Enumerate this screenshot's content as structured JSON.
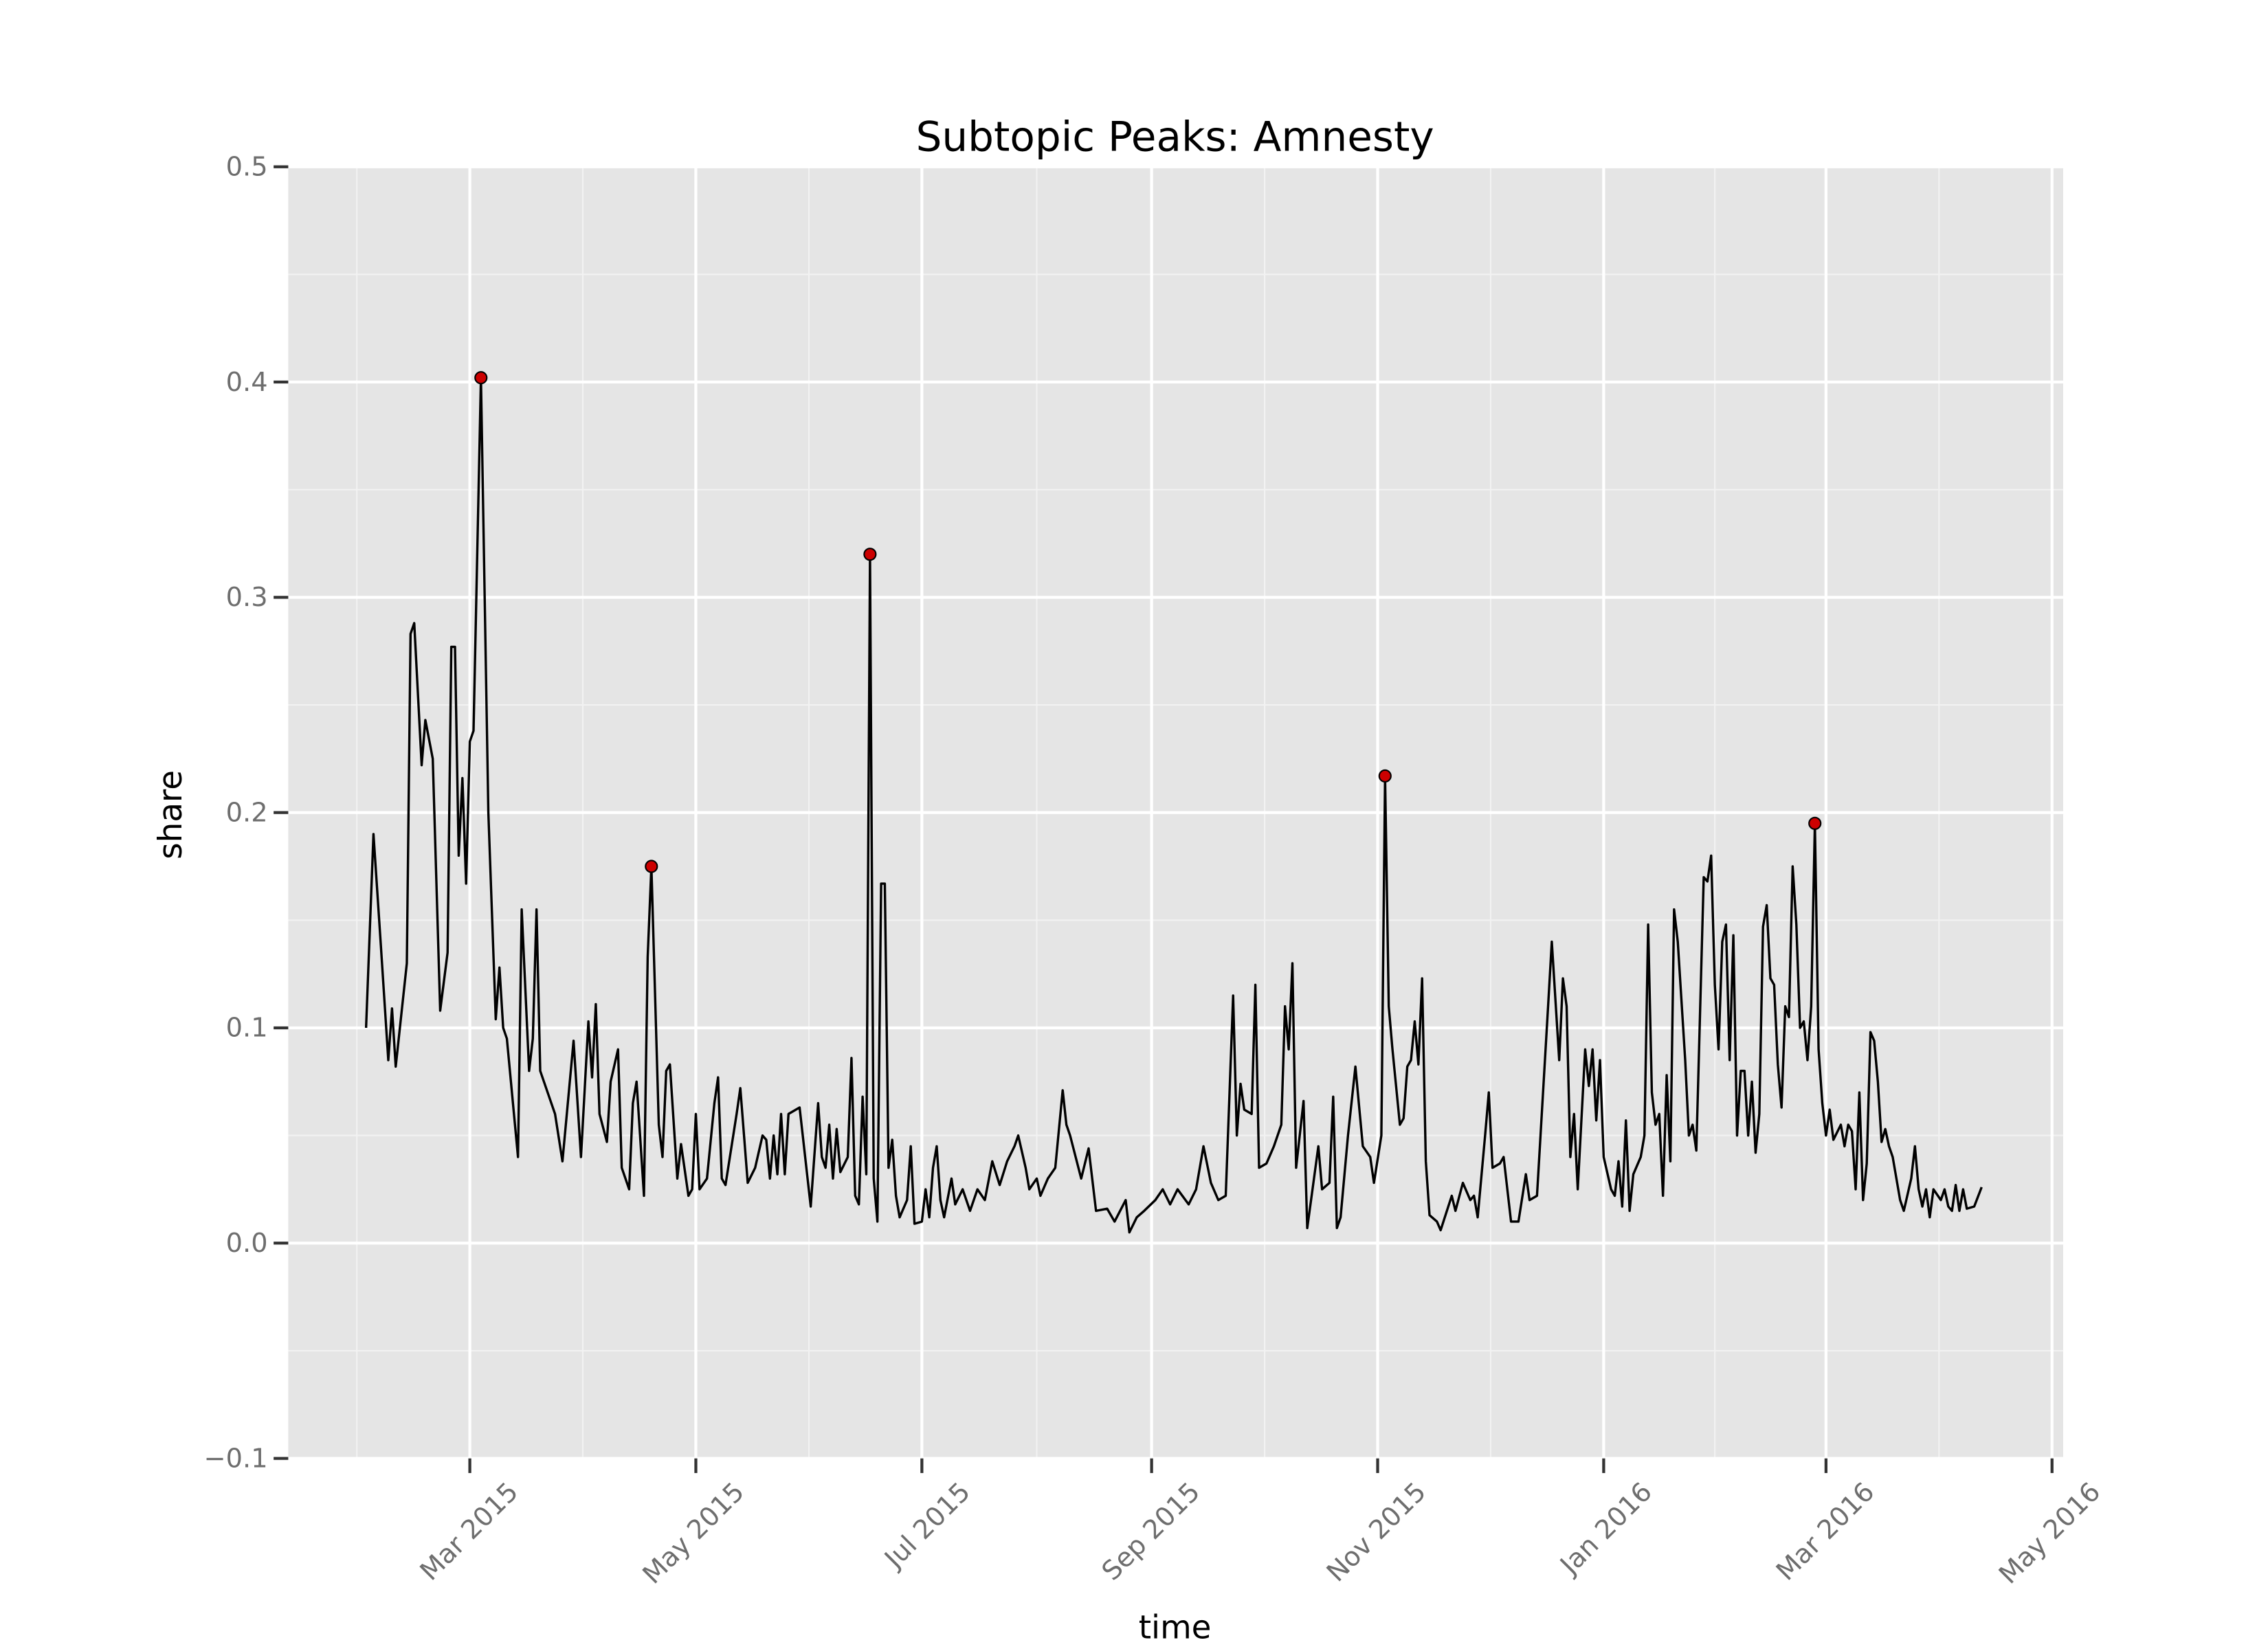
{
  "chart_data": {
    "type": "line",
    "title": "Subtopic Peaks: Amnesty",
    "xlabel": "time",
    "ylabel": "share",
    "xlim": [
      "2015-01-11",
      "2016-05-04"
    ],
    "xticks": [
      {
        "value": "2015-03-01",
        "label": "Mar 2015"
      },
      {
        "value": "2015-05-01",
        "label": "May 2015"
      },
      {
        "value": "2015-07-01",
        "label": "Jul 2015"
      },
      {
        "value": "2015-09-01",
        "label": "Sep 2015"
      },
      {
        "value": "2015-11-01",
        "label": "Nov 2015"
      },
      {
        "value": "2016-01-01",
        "label": "Jan 2016"
      },
      {
        "value": "2016-03-01",
        "label": "Mar 2016"
      },
      {
        "value": "2016-05-01",
        "label": "May 2016"
      }
    ],
    "ylim": [
      -0.1,
      0.5
    ],
    "yticks": [
      {
        "value": -0.1,
        "label": "−0.1"
      },
      {
        "value": 0,
        "label": "0.0"
      },
      0.1,
      0.2,
      0.3,
      0.4,
      0.5
    ],
    "grid": true,
    "series": [
      {
        "color": "#000000",
        "x": [
          "2015-02-01",
          "2015-02-03",
          "2015-02-05",
          "2015-02-07",
          "2015-02-08",
          "2015-02-09",
          "2015-02-12",
          "2015-02-13",
          "2015-02-14",
          "2015-02-16",
          "2015-02-17",
          "2015-02-19",
          "2015-02-21",
          "2015-02-23",
          "2015-02-24",
          "2015-02-25",
          "2015-02-26",
          "2015-02-27",
          "2015-02-28",
          "2015-03-01",
          "2015-03-02",
          "2015-03-04",
          "2015-03-06",
          "2015-03-08",
          "2015-03-09",
          "2015-03-10",
          "2015-03-11",
          "2015-03-14",
          "2015-03-15",
          "2015-03-17",
          "2015-03-18",
          "2015-03-19",
          "2015-03-20",
          "2015-03-24",
          "2015-03-26",
          "2015-03-29",
          "2015-03-31",
          "2015-04-02",
          "2015-04-03",
          "2015-04-04",
          "2015-04-05",
          "2015-04-07",
          "2015-04-08",
          "2015-04-10",
          "2015-04-11",
          "2015-04-13",
          "2015-04-14",
          "2015-04-15",
          "2015-04-17",
          "2015-04-18",
          "2015-04-19",
          "2015-04-21",
          "2015-04-22",
          "2015-04-23",
          "2015-04-24",
          "2015-04-26",
          "2015-04-27",
          "2015-04-29",
          "2015-04-30",
          "2015-05-01",
          "2015-05-02",
          "2015-05-04",
          "2015-05-06",
          "2015-05-07",
          "2015-05-08",
          "2015-05-09",
          "2015-05-12",
          "2015-05-13",
          "2015-05-15",
          "2015-05-17",
          "2015-05-19",
          "2015-05-20",
          "2015-05-21",
          "2015-05-22",
          "2015-05-23",
          "2015-05-24",
          "2015-05-25",
          "2015-05-26",
          "2015-05-29",
          "2015-06-01",
          "2015-06-03",
          "2015-06-04",
          "2015-06-05",
          "2015-06-06",
          "2015-06-07",
          "2015-06-08",
          "2015-06-09",
          "2015-06-11",
          "2015-06-12",
          "2015-06-13",
          "2015-06-14",
          "2015-06-15",
          "2015-06-16",
          "2015-06-17",
          "2015-06-18",
          "2015-06-19",
          "2015-06-20",
          "2015-06-21",
          "2015-06-22",
          "2015-06-23",
          "2015-06-24",
          "2015-06-25",
          "2015-06-27",
          "2015-06-28",
          "2015-06-29",
          "2015-07-01",
          "2015-07-02",
          "2015-07-03",
          "2015-07-04",
          "2015-07-05",
          "2015-07-06",
          "2015-07-07",
          "2015-07-09",
          "2015-07-10",
          "2015-07-12",
          "2015-07-14",
          "2015-07-16",
          "2015-07-18",
          "2015-07-20",
          "2015-07-22",
          "2015-07-24",
          "2015-07-26",
          "2015-07-27",
          "2015-07-29",
          "2015-07-30",
          "2015-08-01",
          "2015-08-02",
          "2015-08-04",
          "2015-08-06",
          "2015-08-08",
          "2015-08-09",
          "2015-08-10",
          "2015-08-13",
          "2015-08-15",
          "2015-08-17",
          "2015-08-20",
          "2015-08-22",
          "2015-08-25",
          "2015-08-26",
          "2015-08-28",
          "2015-08-30",
          "2015-09-02",
          "2015-09-04",
          "2015-09-06",
          "2015-09-08",
          "2015-09-11",
          "2015-09-13",
          "2015-09-15",
          "2015-09-17",
          "2015-09-19",
          "2015-09-21",
          "2015-09-23",
          "2015-09-24",
          "2015-09-25",
          "2015-09-26",
          "2015-09-28",
          "2015-09-29",
          "2015-09-30",
          "2015-10-02",
          "2015-10-04",
          "2015-10-06",
          "2015-10-07",
          "2015-10-08",
          "2015-10-09",
          "2015-10-10",
          "2015-10-12",
          "2015-10-13",
          "2015-10-16",
          "2015-10-17",
          "2015-10-19",
          "2015-10-20",
          "2015-10-21",
          "2015-10-22",
          "2015-10-24",
          "2015-10-26",
          "2015-10-28",
          "2015-10-30",
          "2015-10-31",
          "2015-11-02",
          "2015-11-03",
          "2015-11-04",
          "2015-11-05",
          "2015-11-07",
          "2015-11-08",
          "2015-11-09",
          "2015-11-10",
          "2015-11-11",
          "2015-11-12",
          "2015-11-13",
          "2015-11-14",
          "2015-11-15",
          "2015-11-17",
          "2015-11-18",
          "2015-11-21",
          "2015-11-22",
          "2015-11-24",
          "2015-11-26",
          "2015-11-27",
          "2015-11-28",
          "2015-11-30",
          "2015-12-01",
          "2015-12-02",
          "2015-12-04",
          "2015-12-05",
          "2015-12-07",
          "2015-12-09",
          "2015-12-11",
          "2015-12-12",
          "2015-12-14",
          "2015-12-17",
          "2015-12-18",
          "2015-12-20",
          "2015-12-21",
          "2015-12-22",
          "2015-12-23",
          "2015-12-24",
          "2015-12-25",
          "2015-12-27",
          "2015-12-28",
          "2015-12-29",
          "2015-12-30",
          "2015-12-31",
          "2016-01-01",
          "2016-01-03",
          "2016-01-04",
          "2016-01-05",
          "2016-01-06",
          "2016-01-07",
          "2016-01-08",
          "2016-01-09",
          "2016-01-11",
          "2016-01-12",
          "2016-01-13",
          "2016-01-14",
          "2016-01-15",
          "2016-01-16",
          "2016-01-17",
          "2016-01-18",
          "2016-01-19",
          "2016-01-20",
          "2016-01-21",
          "2016-01-23",
          "2016-01-24",
          "2016-01-25",
          "2016-01-26",
          "2016-01-28",
          "2016-01-29",
          "2016-01-30",
          "2016-01-31",
          "2016-02-01",
          "2016-02-02",
          "2016-02-03",
          "2016-02-04",
          "2016-02-05",
          "2016-02-06",
          "2016-02-07",
          "2016-02-08",
          "2016-02-09",
          "2016-02-10",
          "2016-02-11",
          "2016-02-12",
          "2016-02-13",
          "2016-02-14",
          "2016-02-15",
          "2016-02-16",
          "2016-02-17",
          "2016-02-18",
          "2016-02-19",
          "2016-02-20",
          "2016-02-21",
          "2016-02-22",
          "2016-02-23",
          "2016-02-24",
          "2016-02-25",
          "2016-02-26",
          "2016-02-27",
          "2016-02-28",
          "2016-02-29",
          "2016-03-01",
          "2016-03-02",
          "2016-03-03",
          "2016-03-05",
          "2016-03-06",
          "2016-03-07",
          "2016-03-08",
          "2016-03-09",
          "2016-03-10",
          "2016-03-11",
          "2016-03-12",
          "2016-03-13",
          "2016-03-14",
          "2016-03-15",
          "2016-03-16",
          "2016-03-17",
          "2016-03-18",
          "2016-03-19",
          "2016-03-21",
          "2016-03-22",
          "2016-03-24",
          "2016-03-25",
          "2016-03-26",
          "2016-03-27",
          "2016-03-28",
          "2016-03-29",
          "2016-03-30",
          "2016-04-01",
          "2016-04-02",
          "2016-04-03",
          "2016-04-04",
          "2016-04-05",
          "2016-04-06",
          "2016-04-07",
          "2016-04-08",
          "2016-04-10",
          "2016-04-12"
        ],
        "values": [
          0.1,
          0.19,
          0.138,
          0.085,
          0.109,
          0.082,
          0.13,
          0.283,
          0.288,
          0.222,
          0.243,
          0.225,
          0.108,
          0.135,
          0.277,
          0.277,
          0.18,
          0.216,
          0.167,
          0.233,
          0.238,
          0.402,
          0.2,
          0.104,
          0.128,
          0.1,
          0.095,
          0.04,
          0.155,
          0.08,
          0.095,
          0.155,
          0.08,
          0.06,
          0.038,
          0.094,
          0.04,
          0.103,
          0.077,
          0.111,
          0.06,
          0.047,
          0.075,
          0.09,
          0.035,
          0.025,
          0.065,
          0.075,
          0.022,
          0.133,
          0.175,
          0.055,
          0.04,
          0.08,
          0.083,
          0.03,
          0.046,
          0.022,
          0.025,
          0.06,
          0.025,
          0.03,
          0.065,
          0.077,
          0.03,
          0.027,
          0.06,
          0.072,
          0.028,
          0.035,
          0.05,
          0.048,
          0.03,
          0.05,
          0.032,
          0.06,
          0.032,
          0.06,
          0.063,
          0.017,
          0.065,
          0.04,
          0.035,
          0.055,
          0.03,
          0.053,
          0.033,
          0.04,
          0.086,
          0.022,
          0.018,
          0.068,
          0.032,
          0.32,
          0.03,
          0.01,
          0.167,
          0.167,
          0.035,
          0.048,
          0.022,
          0.012,
          0.02,
          0.045,
          0.009,
          0.01,
          0.025,
          0.012,
          0.035,
          0.045,
          0.02,
          0.012,
          0.03,
          0.018,
          0.025,
          0.015,
          0.025,
          0.02,
          0.038,
          0.027,
          0.038,
          0.045,
          0.05,
          0.035,
          0.025,
          0.03,
          0.022,
          0.03,
          0.035,
          0.071,
          0.055,
          0.05,
          0.03,
          0.044,
          0.015,
          0.016,
          0.01,
          0.02,
          0.005,
          0.012,
          0.015,
          0.02,
          0.025,
          0.018,
          0.025,
          0.018,
          0.025,
          0.045,
          0.028,
          0.02,
          0.022,
          0.115,
          0.05,
          0.074,
          0.062,
          0.06,
          0.12,
          0.035,
          0.037,
          0.045,
          0.055,
          0.11,
          0.09,
          0.13,
          0.035,
          0.066,
          0.007,
          0.045,
          0.025,
          0.028,
          0.068,
          0.007,
          0.012,
          0.05,
          0.082,
          0.045,
          0.04,
          0.028,
          0.05,
          0.217,
          0.11,
          0.09,
          0.055,
          0.058,
          0.082,
          0.085,
          0.103,
          0.083,
          0.123,
          0.038,
          0.013,
          0.01,
          0.006,
          0.022,
          0.015,
          0.028,
          0.02,
          0.022,
          0.012,
          0.05,
          0.07,
          0.035,
          0.037,
          0.04,
          0.01,
          0.01,
          0.032,
          0.02,
          0.022,
          0.11,
          0.14,
          0.085,
          0.123,
          0.11,
          0.04,
          0.06,
          0.025,
          0.09,
          0.073,
          0.09,
          0.057,
          0.085,
          0.04,
          0.025,
          0.022,
          0.038,
          0.017,
          0.057,
          0.015,
          0.032,
          0.04,
          0.05,
          0.148,
          0.07,
          0.055,
          0.06,
          0.022,
          0.078,
          0.038,
          0.155,
          0.14,
          0.085,
          0.05,
          0.055,
          0.043,
          0.17,
          0.168,
          0.18,
          0.12,
          0.09,
          0.14,
          0.148,
          0.085,
          0.143,
          0.05,
          0.08,
          0.08,
          0.05,
          0.075,
          0.042,
          0.06,
          0.147,
          0.157,
          0.123,
          0.12,
          0.083,
          0.063,
          0.11,
          0.105,
          0.175,
          0.148,
          0.1,
          0.103,
          0.085,
          0.11,
          0.195,
          0.09,
          0.065,
          0.05,
          0.062,
          0.048,
          0.055,
          0.045,
          0.055,
          0.052,
          0.025,
          0.07,
          0.02,
          0.037,
          0.098,
          0.094,
          0.075,
          0.047,
          0.053,
          0.045,
          0.04,
          0.02,
          0.015,
          0.03,
          0.045,
          0.025,
          0.017,
          0.025,
          0.012,
          0.025,
          0.02,
          0.025,
          0.017,
          0.015,
          0.027,
          0.015,
          0.025,
          0.016,
          0.017,
          0.026
        ]
      },
      {
        "type": "scatter",
        "color": "#cc0000",
        "x": [
          "2015-03-04",
          "2015-04-19",
          "2015-06-17",
          "2015-11-03",
          "2016-02-27"
        ],
        "values": [
          0.402,
          0.175,
          0.32,
          0.217,
          0.195
        ]
      }
    ]
  }
}
